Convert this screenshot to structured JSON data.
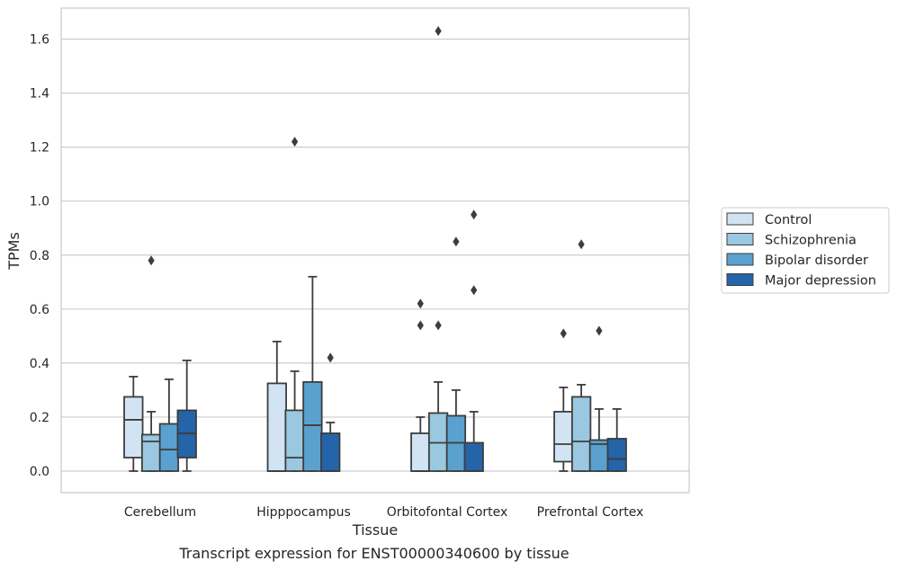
{
  "chart_data": {
    "type": "box",
    "xlabel": "Tissue",
    "ylabel": "TPMs",
    "ylim": [
      -0.08,
      1.72
    ],
    "yticks": [
      "0.0",
      "0.2",
      "0.4",
      "0.6",
      "0.8",
      "1.0",
      "1.2",
      "1.4",
      "1.6"
    ],
    "grid": "horizontal",
    "legend_position": "right",
    "categories": [
      "Cerebellum",
      "Hipppocampus",
      "Orbitofontal Cortex",
      "Prefrontal Cortex"
    ],
    "series": [
      {
        "name": "Control",
        "color": "#d2e3f3",
        "boxes": [
          {
            "whislo": 0.0,
            "q1": 0.05,
            "med": 0.19,
            "q3": 0.275,
            "whishi": 0.35,
            "fliers": []
          },
          {
            "whislo": 0.0,
            "q1": 0.0,
            "med": 0.0,
            "q3": 0.325,
            "whishi": 0.48,
            "fliers": []
          },
          {
            "whislo": 0.0,
            "q1": 0.0,
            "med": 0.0,
            "q3": 0.14,
            "whishi": 0.2,
            "fliers": [
              0.54,
              0.62
            ]
          },
          {
            "whislo": 0.0,
            "q1": 0.035,
            "med": 0.1,
            "q3": 0.22,
            "whishi": 0.31,
            "fliers": [
              0.51
            ]
          }
        ]
      },
      {
        "name": "Schizophrenia",
        "color": "#9ac8e0",
        "boxes": [
          {
            "whislo": 0.0,
            "q1": 0.0,
            "med": 0.11,
            "q3": 0.135,
            "whishi": 0.22,
            "fliers": [
              0.78
            ]
          },
          {
            "whislo": 0.0,
            "q1": 0.0,
            "med": 0.05,
            "q3": 0.225,
            "whishi": 0.37,
            "fliers": [
              1.22
            ]
          },
          {
            "whislo": 0.0,
            "q1": 0.0,
            "med": 0.105,
            "q3": 0.215,
            "whishi": 0.33,
            "fliers": [
              0.54,
              1.63
            ]
          },
          {
            "whislo": 0.0,
            "q1": 0.0,
            "med": 0.11,
            "q3": 0.275,
            "whishi": 0.32,
            "fliers": [
              0.84
            ]
          }
        ]
      },
      {
        "name": "Bipolar disorder",
        "color": "#5aa1cf",
        "boxes": [
          {
            "whislo": 0.0,
            "q1": 0.0,
            "med": 0.08,
            "q3": 0.175,
            "whishi": 0.34,
            "fliers": []
          },
          {
            "whislo": 0.0,
            "q1": 0.0,
            "med": 0.17,
            "q3": 0.33,
            "whishi": 0.72,
            "fliers": []
          },
          {
            "whislo": 0.0,
            "q1": 0.0,
            "med": 0.105,
            "q3": 0.205,
            "whishi": 0.3,
            "fliers": [
              0.85
            ]
          },
          {
            "whislo": 0.0,
            "q1": 0.0,
            "med": 0.1,
            "q3": 0.115,
            "whishi": 0.23,
            "fliers": [
              0.52
            ]
          }
        ]
      },
      {
        "name": "Major depression",
        "color": "#2464a8",
        "boxes": [
          {
            "whislo": 0.0,
            "q1": 0.05,
            "med": 0.14,
            "q3": 0.225,
            "whishi": 0.41,
            "fliers": []
          },
          {
            "whislo": 0.0,
            "q1": 0.0,
            "med": 0.0,
            "q3": 0.14,
            "whishi": 0.18,
            "fliers": [
              0.42
            ]
          },
          {
            "whislo": 0.0,
            "q1": 0.0,
            "med": 0.0,
            "q3": 0.105,
            "whishi": 0.22,
            "fliers": [
              0.67,
              0.95
            ]
          },
          {
            "whislo": 0.0,
            "q1": 0.0,
            "med": 0.045,
            "q3": 0.12,
            "whishi": 0.23,
            "fliers": []
          }
        ]
      }
    ]
  },
  "caption": "Transcript expression for ENST00000340600 by tissue"
}
